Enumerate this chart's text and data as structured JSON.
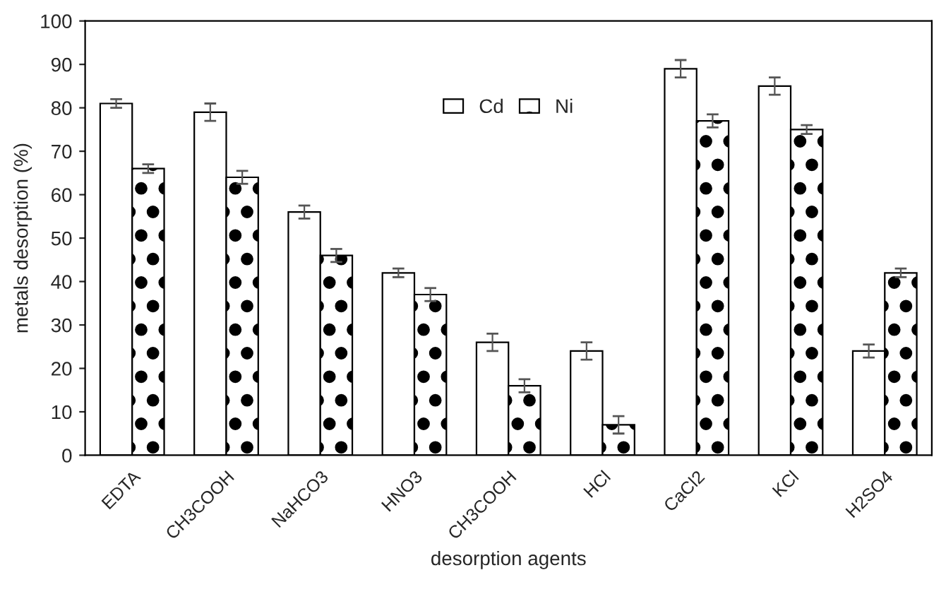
{
  "chart_data": {
    "type": "bar",
    "xlabel": "desorption agents",
    "ylabel": "metals desorption (%)",
    "categories": [
      "EDTA",
      "CH3COOH",
      "NaHCO3",
      "HNO3",
      "CH3COOH",
      "HCl",
      "CaCl2",
      "KCl",
      "H2SO4"
    ],
    "series": [
      {
        "name": "Cd",
        "color": "#ffffff",
        "values": [
          81,
          79,
          56,
          42,
          26,
          24,
          89,
          85,
          24
        ],
        "errors": [
          1,
          2,
          1.5,
          1,
          2,
          2,
          2,
          2,
          1.5
        ]
      },
      {
        "name": "Ni",
        "color": "#000000",
        "values": [
          66,
          64,
          46,
          37,
          16,
          7,
          77,
          75,
          42
        ],
        "errors": [
          1,
          1.5,
          1.5,
          1.5,
          1.5,
          2,
          1.5,
          1,
          1
        ]
      }
    ],
    "ylim": [
      0,
      100
    ],
    "yticks": [
      0,
      10,
      20,
      30,
      40,
      50,
      60,
      70,
      80,
      90,
      100
    ],
    "grid": false,
    "legend": "top"
  }
}
